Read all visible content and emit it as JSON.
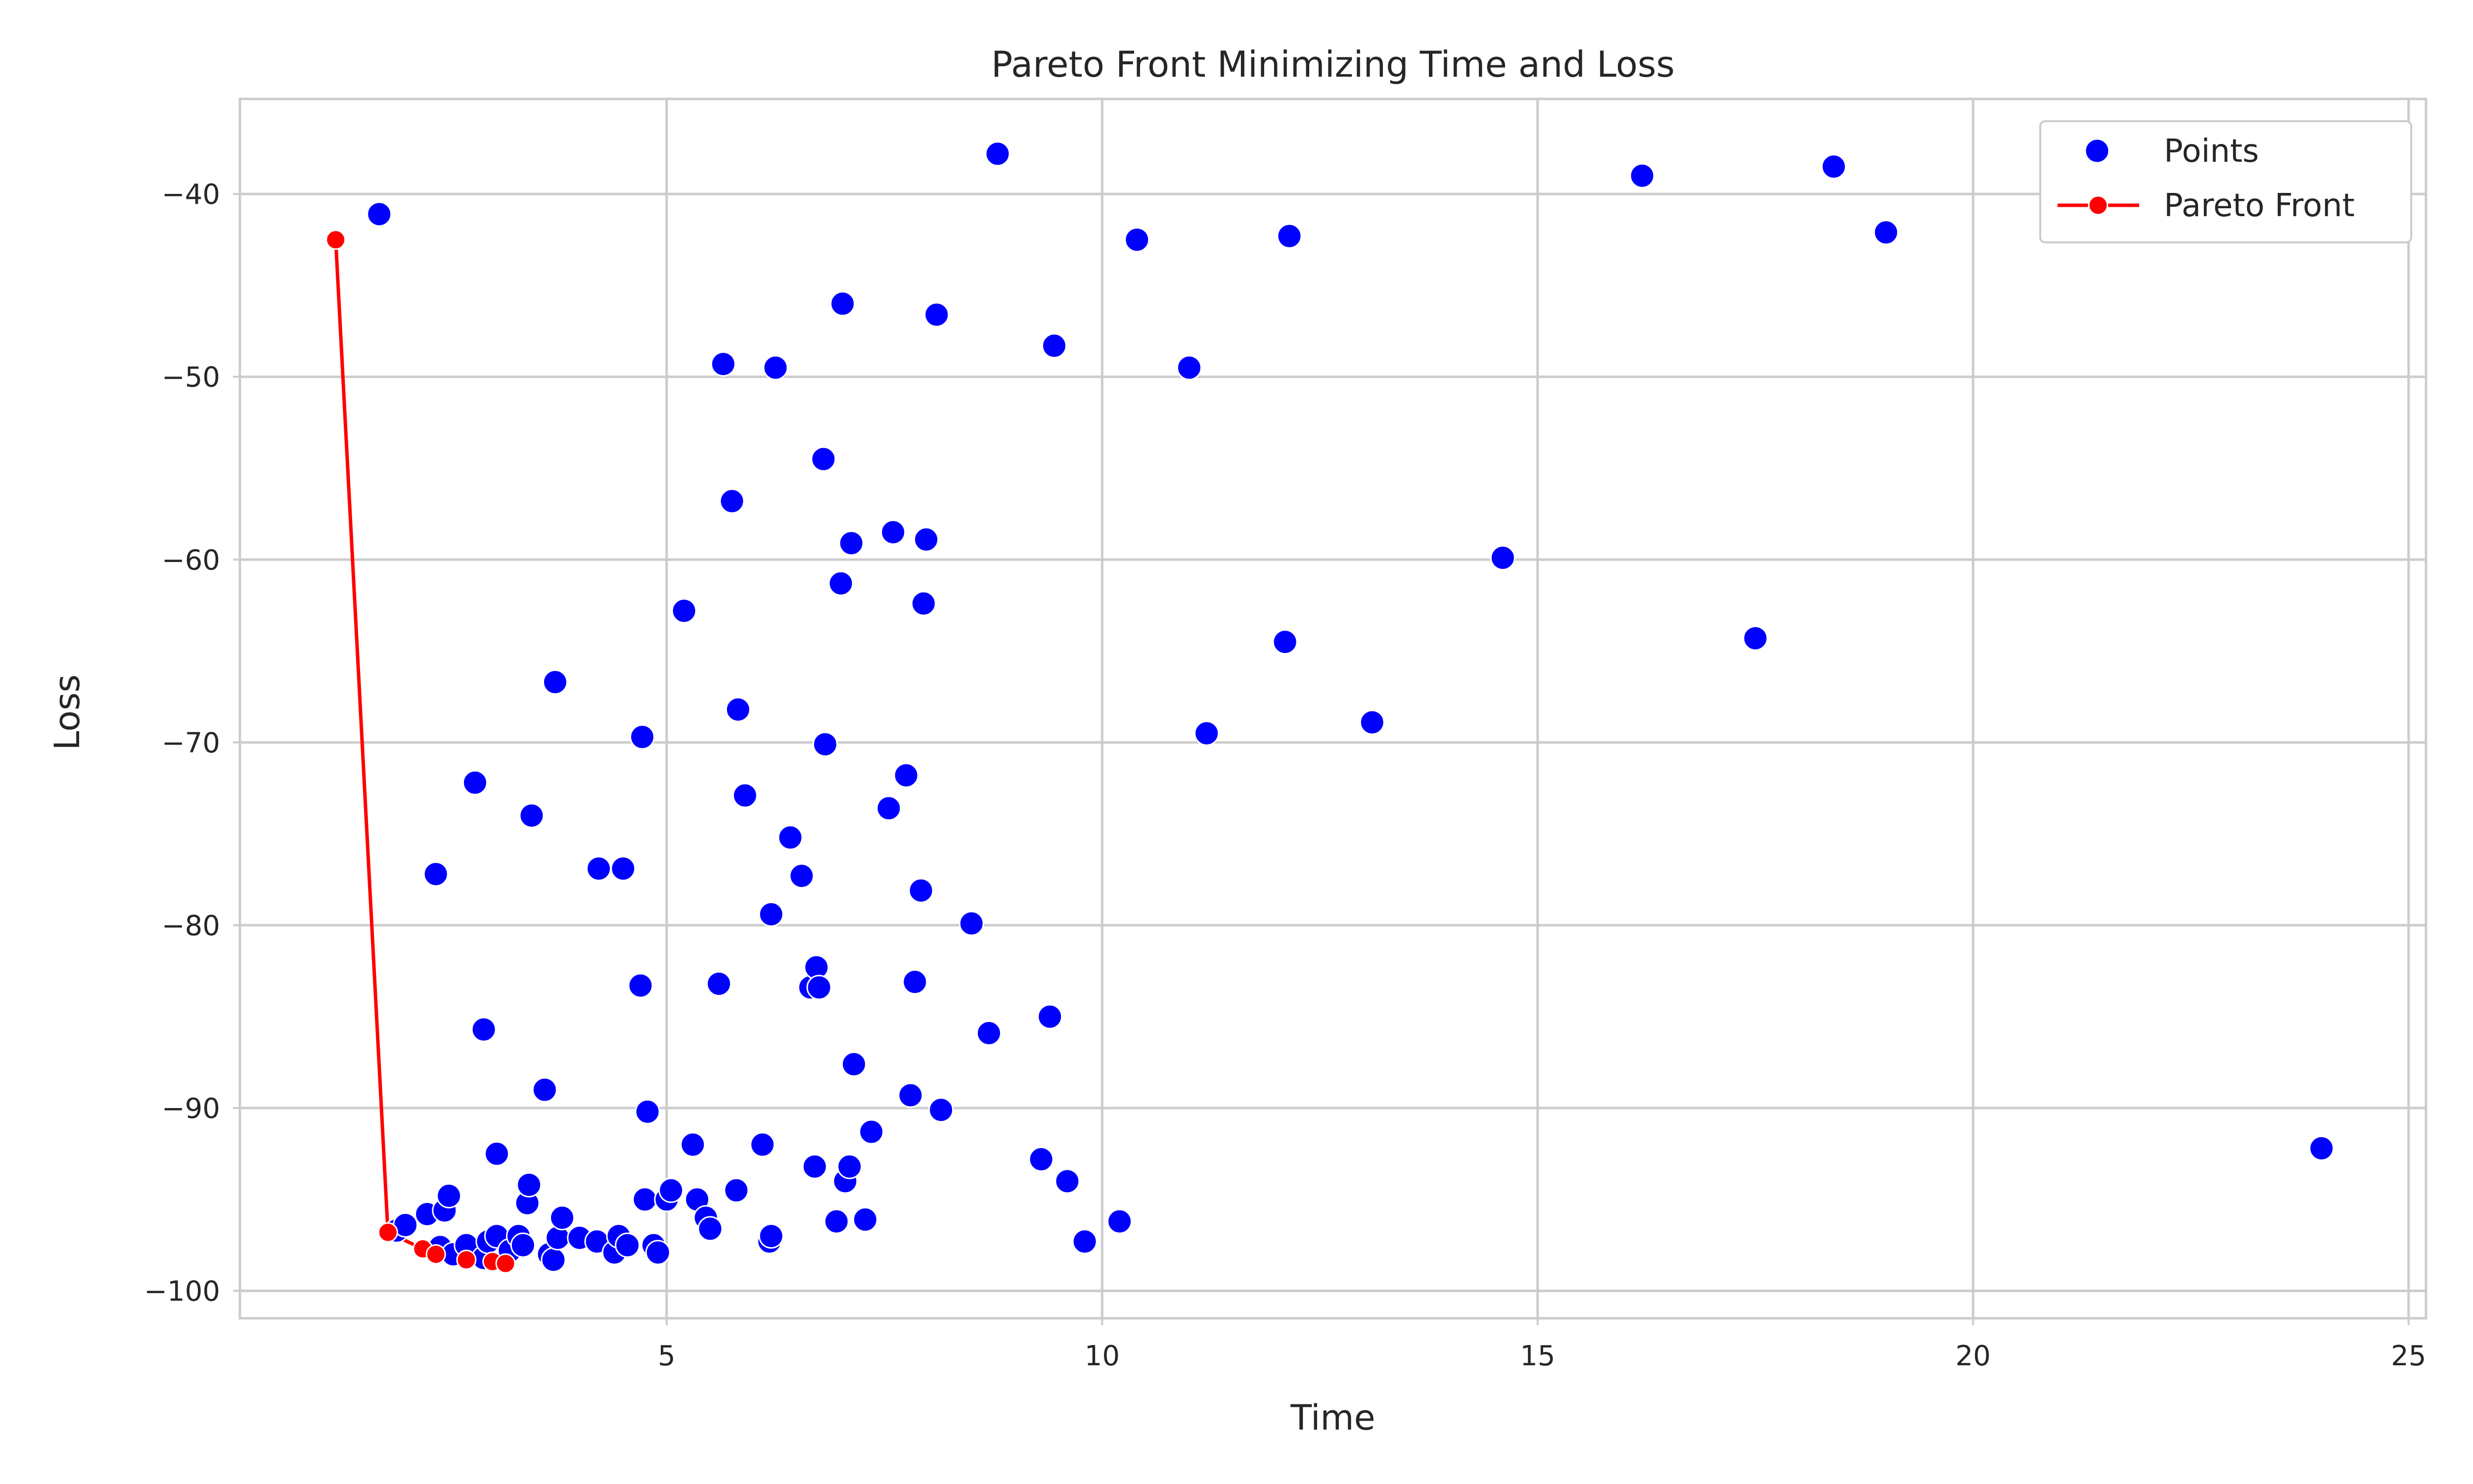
{
  "chart_data": {
    "type": "scatter",
    "title": "Pareto Front Minimizing Time and Loss",
    "xlabel": "Time",
    "ylabel": "Loss",
    "xlim": [
      0.1,
      25.2
    ],
    "ylim": [
      -101.5,
      -34.8
    ],
    "xticks": [
      5,
      10,
      15,
      20,
      25
    ],
    "yticks": [
      -40,
      -50,
      -60,
      -70,
      -80,
      -90,
      -100
    ],
    "grid": true,
    "legend_position": "top-right",
    "colors": {
      "points": "#0000ff",
      "pareto": "#ff0000",
      "grid": "#cccccc",
      "axes": "#cccccc"
    },
    "series": [
      {
        "name": "Points",
        "kind": "scatter",
        "points": [
          [
            1.7,
            -41.1
          ],
          [
            1.9,
            -96.7
          ],
          [
            2.0,
            -96.4
          ],
          [
            2.25,
            -95.8
          ],
          [
            2.35,
            -77.2
          ],
          [
            2.4,
            -97.6
          ],
          [
            2.45,
            -95.6
          ],
          [
            2.5,
            -94.8
          ],
          [
            2.55,
            -98.0
          ],
          [
            2.7,
            -97.5
          ],
          [
            2.8,
            -72.2
          ],
          [
            2.9,
            -85.7
          ],
          [
            2.9,
            -98.2
          ],
          [
            2.95,
            -97.3
          ],
          [
            3.05,
            -92.5
          ],
          [
            3.05,
            -97.0
          ],
          [
            3.2,
            -97.8
          ],
          [
            3.3,
            -97.0
          ],
          [
            3.35,
            -97.5
          ],
          [
            3.4,
            -95.2
          ],
          [
            3.42,
            -94.2
          ],
          [
            3.45,
            -74.0
          ],
          [
            3.6,
            -89.0
          ],
          [
            3.65,
            -98.0
          ],
          [
            3.7,
            -98.3
          ],
          [
            3.72,
            -66.7
          ],
          [
            3.75,
            -97.1
          ],
          [
            3.8,
            -96.0
          ],
          [
            4.0,
            -97.1
          ],
          [
            4.2,
            -97.3
          ],
          [
            4.22,
            -76.9
          ],
          [
            4.4,
            -97.9
          ],
          [
            4.45,
            -97.0
          ],
          [
            4.5,
            -76.9
          ],
          [
            4.55,
            -97.5
          ],
          [
            4.7,
            -83.3
          ],
          [
            4.72,
            -69.7
          ],
          [
            4.75,
            -95.0
          ],
          [
            4.78,
            -90.2
          ],
          [
            4.85,
            -97.5
          ],
          [
            4.9,
            -97.9
          ],
          [
            5.0,
            -95.0
          ],
          [
            5.05,
            -94.5
          ],
          [
            5.2,
            -62.8
          ],
          [
            5.3,
            -92.0
          ],
          [
            5.35,
            -95.0
          ],
          [
            5.45,
            -96.0
          ],
          [
            5.5,
            -96.6
          ],
          [
            5.6,
            -83.2
          ],
          [
            5.65,
            -49.3
          ],
          [
            5.75,
            -56.8
          ],
          [
            5.8,
            -94.5
          ],
          [
            5.82,
            -68.2
          ],
          [
            5.9,
            -72.9
          ],
          [
            6.1,
            -92.0
          ],
          [
            6.18,
            -97.3
          ],
          [
            6.2,
            -79.4
          ],
          [
            6.2,
            -97.0
          ],
          [
            6.25,
            -49.5
          ],
          [
            6.42,
            -75.2
          ],
          [
            6.55,
            -77.3
          ],
          [
            6.65,
            -83.4
          ],
          [
            6.7,
            -93.2
          ],
          [
            6.72,
            -82.3
          ],
          [
            6.75,
            -83.4
          ],
          [
            6.8,
            -54.5
          ],
          [
            6.82,
            -70.1
          ],
          [
            6.95,
            -96.2
          ],
          [
            7.0,
            -61.3
          ],
          [
            7.02,
            -46.0
          ],
          [
            7.05,
            -94.0
          ],
          [
            7.1,
            -93.2
          ],
          [
            7.12,
            -59.1
          ],
          [
            7.15,
            -87.6
          ],
          [
            7.28,
            -96.1
          ],
          [
            7.35,
            -91.3
          ],
          [
            7.55,
            -73.6
          ],
          [
            7.6,
            -58.5
          ],
          [
            7.75,
            -71.8
          ],
          [
            7.8,
            -89.3
          ],
          [
            7.85,
            -83.1
          ],
          [
            7.92,
            -78.1
          ],
          [
            7.95,
            -62.4
          ],
          [
            7.98,
            -58.9
          ],
          [
            8.1,
            -46.6
          ],
          [
            8.15,
            -90.1
          ],
          [
            8.5,
            -79.9
          ],
          [
            8.7,
            -85.9
          ],
          [
            8.8,
            -37.8
          ],
          [
            9.3,
            -92.8
          ],
          [
            9.4,
            -85.0
          ],
          [
            9.45,
            -48.3
          ],
          [
            9.6,
            -94.0
          ],
          [
            9.8,
            -97.3
          ],
          [
            10.2,
            -96.2
          ],
          [
            10.4,
            -42.5
          ],
          [
            11.0,
            -49.5
          ],
          [
            11.2,
            -69.5
          ],
          [
            12.1,
            -64.5
          ],
          [
            12.15,
            -42.3
          ],
          [
            13.1,
            -68.9
          ],
          [
            14.6,
            -59.9
          ],
          [
            16.2,
            -39.0
          ],
          [
            17.5,
            -64.3
          ],
          [
            18.4,
            -38.5
          ],
          [
            19.0,
            -42.1
          ],
          [
            24.0,
            -92.2
          ]
        ]
      },
      {
        "name": "Pareto Front",
        "kind": "line-markers",
        "points": [
          [
            1.2,
            -42.5
          ],
          [
            1.8,
            -96.8
          ],
          [
            2.2,
            -97.7
          ],
          [
            2.35,
            -98.0
          ],
          [
            2.7,
            -98.3
          ],
          [
            3.0,
            -98.4
          ],
          [
            3.15,
            -98.5
          ]
        ]
      }
    ]
  }
}
